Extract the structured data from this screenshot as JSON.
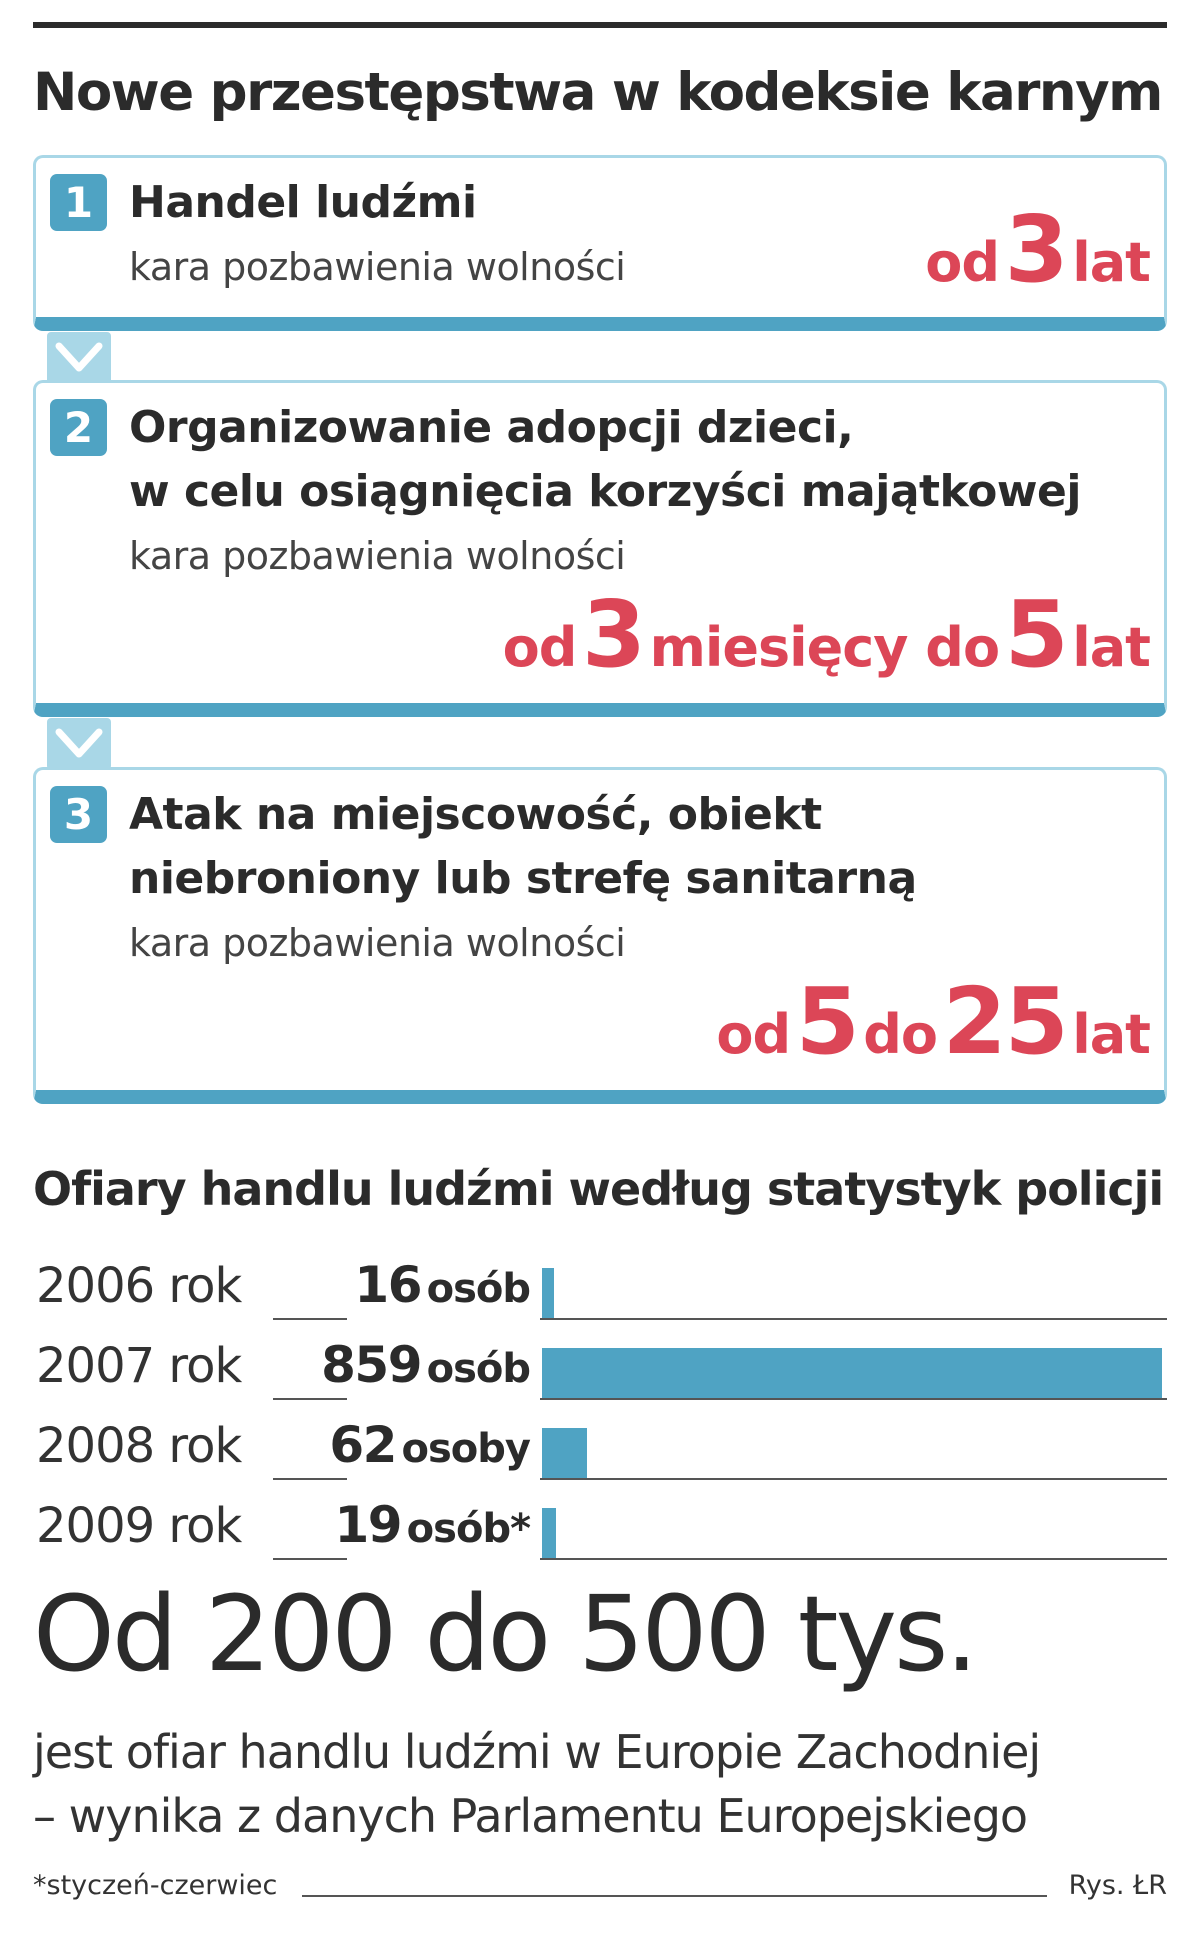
{
  "headline": "Nowe przestępstwa w kodeksie karnym",
  "crimes": [
    {
      "number": "1",
      "title_lines": [
        "Handel ludźmi"
      ],
      "penalty_label": "kara pozbawienia wolności",
      "sentence": [
        {
          "text": "od",
          "big": false
        },
        {
          "text": "3",
          "big": true
        },
        {
          "text": "lat",
          "big": false
        }
      ]
    },
    {
      "number": "2",
      "title_lines": [
        "Organizowanie adopcji dzieci,",
        "w celu osiągnięcia korzyści majątkowej"
      ],
      "penalty_label": "kara pozbawienia wolności",
      "sentence": [
        {
          "text": "od",
          "big": false
        },
        {
          "text": "3",
          "big": true
        },
        {
          "text": "miesięcy do",
          "big": false
        },
        {
          "text": "5",
          "big": true
        },
        {
          "text": "lat",
          "big": false
        }
      ]
    },
    {
      "number": "3",
      "title_lines": [
        "Atak na miejscowość, obiekt",
        "niebroniony lub strefę sanitarną"
      ],
      "penalty_label": "kara pozbawienia wolności",
      "sentence": [
        {
          "text": "od",
          "big": false
        },
        {
          "text": "5",
          "big": true
        },
        {
          "text": "do",
          "big": false
        },
        {
          "text": "25",
          "big": true
        },
        {
          "text": "lat",
          "big": false
        }
      ]
    }
  ],
  "chart_data": {
    "type": "bar",
    "orientation": "horizontal",
    "title": "Ofiary handlu ludźmi według statystyk policji",
    "categories": [
      "2006 rok",
      "2007 rok",
      "2008 rok",
      "2009 rok"
    ],
    "values": [
      16,
      859,
      62,
      19
    ],
    "value_numbers": [
      "16",
      "859",
      "62",
      "19"
    ],
    "value_units": [
      "osób",
      "osób",
      "osoby",
      "osób*"
    ],
    "bar_color": "#4fa3c3"
  },
  "stat": {
    "headline": "Od 200 do 500 tys.",
    "description_lines": [
      "jest ofiar handlu ludźmi w Europie Zachodniej",
      "– wynika z danych Parlamentu Europejskiego"
    ]
  },
  "footnote": "*styczeń-czerwiec",
  "credit": "Rys. ŁR",
  "colors": {
    "accent_blue": "#4fa3c3",
    "light_blue_border": "#a9d7e7",
    "sentence_red": "#dc4657",
    "text_dark": "#2b2b2b"
  }
}
